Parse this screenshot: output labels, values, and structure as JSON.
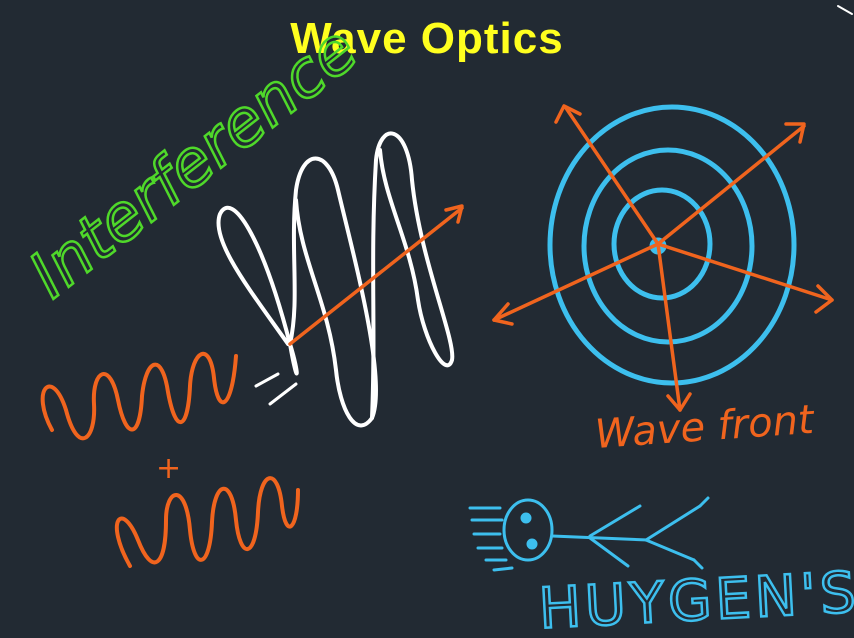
{
  "title": "Wave Optics",
  "labels": {
    "interference": "Interference",
    "wavefront": "Wave front",
    "huygens": "HUYGEN'S",
    "plus": "+"
  },
  "colors": {
    "background": "#222a33",
    "title": "#ffff1f",
    "green": "#4fd82a",
    "orange": "#f0641e",
    "white": "#ffffff",
    "blue": "#3dbfee"
  }
}
